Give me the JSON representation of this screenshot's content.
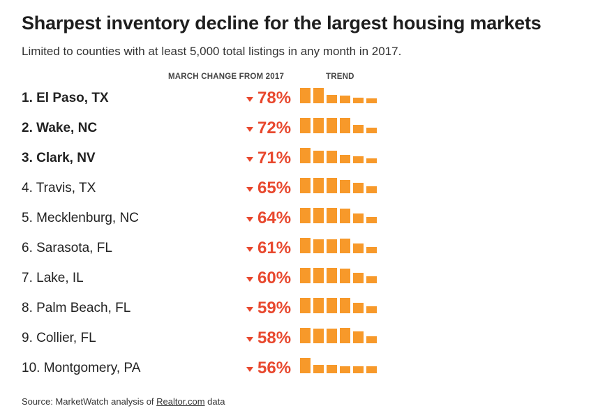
{
  "header": {
    "title": "Sharpest inventory decline for the largest housing markets",
    "subtitle": "Limited to counties with at least 5,000 total listings in any month in 2017.",
    "col_change": "MARCH CHANGE FROM 2017",
    "col_trend": "TREND"
  },
  "footer": {
    "source_prefix": "Source: MarketWatch analysis of ",
    "source_link": "Realtor.com",
    "source_suffix": " data"
  },
  "colors": {
    "accent": "#e8482e",
    "bar": "#f7992a"
  },
  "chart_data": {
    "type": "table",
    "columns": [
      "",
      "MARCH CHANGE FROM 2017",
      "TREND"
    ],
    "rows": [
      {
        "county": "1. El Paso, TX",
        "bold": true,
        "change": "78%",
        "trend": [
          1.0,
          1.0,
          0.55,
          0.5,
          0.35,
          0.3
        ]
      },
      {
        "county": "2. Wake, NC",
        "bold": true,
        "change": "72%",
        "trend": [
          1.0,
          1.0,
          1.0,
          1.0,
          0.55,
          0.35
        ]
      },
      {
        "county": "3. Clark, NV",
        "bold": true,
        "change": "71%",
        "trend": [
          1.0,
          0.8,
          0.8,
          0.55,
          0.45,
          0.3
        ]
      },
      {
        "county": "4. Travis, TX",
        "bold": false,
        "change": "65%",
        "trend": [
          1.0,
          1.0,
          1.0,
          0.85,
          0.7,
          0.45
        ]
      },
      {
        "county": "5. Mecklenburg, NC",
        "bold": false,
        "change": "64%",
        "trend": [
          1.0,
          1.0,
          1.0,
          0.95,
          0.65,
          0.4
        ]
      },
      {
        "county": "6. Sarasota, FL",
        "bold": false,
        "change": "61%",
        "trend": [
          1.0,
          0.9,
          0.9,
          0.95,
          0.65,
          0.4
        ]
      },
      {
        "county": "7. Lake, IL",
        "bold": false,
        "change": "60%",
        "trend": [
          1.0,
          1.0,
          1.0,
          0.95,
          0.7,
          0.45
        ]
      },
      {
        "county": "8. Palm Beach, FL",
        "bold": false,
        "change": "59%",
        "trend": [
          1.0,
          1.0,
          1.0,
          1.0,
          0.7,
          0.45
        ]
      },
      {
        "county": "9. Collier, FL",
        "bold": false,
        "change": "58%",
        "trend": [
          1.0,
          0.95,
          0.95,
          1.0,
          0.75,
          0.45
        ]
      },
      {
        "county": "10. Montgomery, PA",
        "bold": false,
        "change": "56%",
        "trend": [
          1.0,
          0.55,
          0.55,
          0.45,
          0.45,
          0.45
        ]
      }
    ]
  }
}
